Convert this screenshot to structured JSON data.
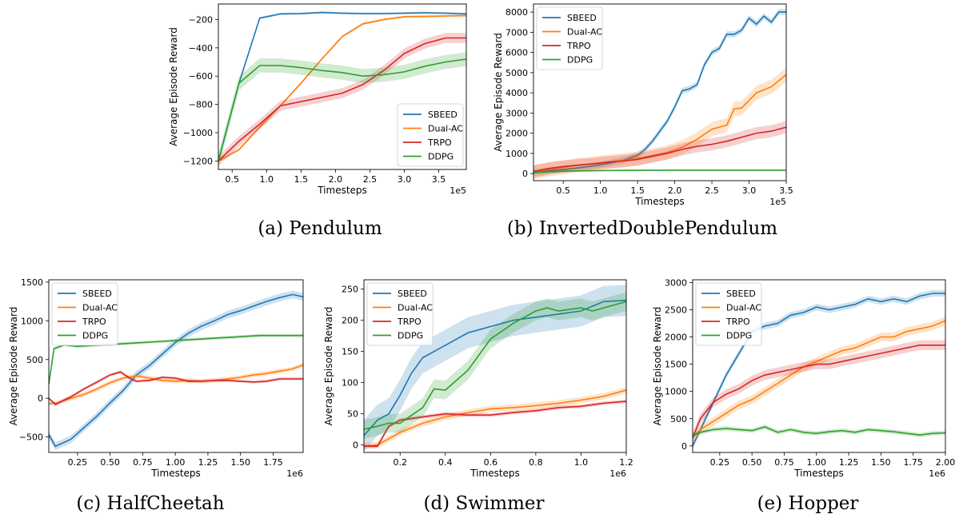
{
  "colors": {
    "SBEED": "#1f77b4",
    "Dual-AC": "#ff7f0e",
    "TRPO": "#d62728",
    "DDPG": "#2ca02c"
  },
  "chart_data": [
    {
      "type": "line",
      "caption": "(a) Pendulum",
      "xlabel": "Timesteps",
      "ylabel": "Average Episode Reward",
      "offset": "1e5",
      "xlim": [
        0.3,
        3.9
      ],
      "ylim": [
        -1260,
        -90
      ],
      "xticks": [
        0.5,
        1.0,
        1.5,
        2.0,
        2.5,
        3.0,
        3.5
      ],
      "xticklabels": [
        "0.5",
        "1.0",
        "1.5",
        "2.0",
        "2.5",
        "3.0",
        "3.5"
      ],
      "yticks": [
        -1200,
        -1000,
        -800,
        -600,
        -400,
        -200
      ],
      "yticklabels": [
        "−1200",
        "−1000",
        "−800",
        "−600",
        "−400",
        "−200"
      ],
      "legend": "lower-right",
      "series": [
        {
          "name": "SBEED",
          "band": 8,
          "x": [
            0.3,
            0.6,
            0.9,
            1.2,
            1.5,
            1.8,
            2.1,
            2.4,
            2.7,
            3.0,
            3.3,
            3.6,
            3.9
          ],
          "y": [
            -1200,
            -650,
            -190,
            -160,
            -158,
            -150,
            -155,
            -158,
            -158,
            -155,
            -152,
            -155,
            -160
          ]
        },
        {
          "name": "Dual-AC",
          "band": 10,
          "x": [
            0.3,
            0.6,
            0.9,
            1.2,
            1.5,
            1.8,
            2.1,
            2.4,
            2.7,
            3.0,
            3.3,
            3.6,
            3.9
          ],
          "y": [
            -1200,
            -1120,
            -960,
            -810,
            -650,
            -480,
            -320,
            -230,
            -200,
            -180,
            -178,
            -175,
            -172
          ]
        },
        {
          "name": "TRPO",
          "band": 35,
          "x": [
            0.3,
            0.6,
            0.9,
            1.2,
            1.5,
            1.8,
            2.1,
            2.4,
            2.7,
            3.0,
            3.3,
            3.6,
            3.9
          ],
          "y": [
            -1200,
            -1060,
            -940,
            -810,
            -780,
            -750,
            -720,
            -660,
            -560,
            -440,
            -370,
            -330,
            -330
          ]
        },
        {
          "name": "DDPG",
          "band": 50,
          "x": [
            0.3,
            0.6,
            0.9,
            1.2,
            1.5,
            1.8,
            2.1,
            2.4,
            2.7,
            3.0,
            3.3,
            3.6,
            3.9
          ],
          "y": [
            -1200,
            -650,
            -525,
            -525,
            -540,
            -560,
            -575,
            -600,
            -590,
            -570,
            -530,
            -500,
            -480
          ]
        }
      ]
    },
    {
      "type": "line",
      "caption": "(b) InvertedDoublePendulum",
      "xlabel": "Timesteps",
      "ylabel": "Average Episode Reward",
      "offset": "1e5",
      "xlim": [
        0.1,
        3.5
      ],
      "ylim": [
        -350,
        8400
      ],
      "xticks": [
        0.5,
        1.0,
        1.5,
        2.0,
        2.5,
        3.0,
        3.5
      ],
      "xticklabels": [
        "0.5",
        "1.0",
        "1.5",
        "2.0",
        "2.5",
        "3.0",
        "3.5"
      ],
      "yticks": [
        0,
        1000,
        2000,
        3000,
        4000,
        5000,
        6000,
        7000,
        8000
      ],
      "yticklabels": [
        "0",
        "1000",
        "2000",
        "3000",
        "4000",
        "5000",
        "6000",
        "7000",
        "8000"
      ],
      "legend": "upper-left",
      "series": [
        {
          "name": "SBEED",
          "band": 150,
          "x": [
            0.1,
            0.3,
            0.5,
            0.7,
            0.9,
            1.1,
            1.3,
            1.5,
            1.6,
            1.7,
            1.8,
            1.9,
            2.0,
            2.1,
            2.2,
            2.3,
            2.4,
            2.5,
            2.6,
            2.7,
            2.8,
            2.9,
            3.0,
            3.1,
            3.2,
            3.3,
            3.4,
            3.5
          ],
          "y": [
            50,
            150,
            200,
            280,
            380,
            500,
            650,
            900,
            1200,
            1600,
            2100,
            2600,
            3300,
            4100,
            4200,
            4400,
            5400,
            6000,
            6200,
            6900,
            6900,
            7100,
            7700,
            7400,
            7800,
            7500,
            8000,
            8000
          ]
        },
        {
          "name": "Dual-AC",
          "band": 350,
          "x": [
            0.1,
            0.3,
            0.5,
            0.7,
            0.9,
            1.1,
            1.3,
            1.5,
            1.7,
            1.9,
            2.1,
            2.3,
            2.5,
            2.7,
            2.8,
            2.9,
            3.1,
            3.3,
            3.5
          ],
          "y": [
            80,
            200,
            300,
            420,
            500,
            580,
            650,
            750,
            900,
            1050,
            1300,
            1700,
            2200,
            2400,
            3200,
            3250,
            4000,
            4300,
            4900
          ]
        },
        {
          "name": "TRPO",
          "band": 300,
          "x": [
            0.1,
            0.3,
            0.5,
            0.7,
            0.9,
            1.1,
            1.3,
            1.5,
            1.7,
            1.9,
            2.1,
            2.3,
            2.5,
            2.7,
            2.9,
            3.1,
            3.3,
            3.5
          ],
          "y": [
            100,
            250,
            350,
            420,
            480,
            560,
            620,
            700,
            850,
            1000,
            1200,
            1350,
            1450,
            1600,
            1800,
            2000,
            2100,
            2300
          ]
        },
        {
          "name": "DDPG",
          "band": 30,
          "x": [
            0.1,
            0.5,
            1.0,
            1.5,
            2.0,
            2.5,
            3.0,
            3.5
          ],
          "y": [
            50,
            120,
            150,
            160,
            170,
            170,
            170,
            170
          ]
        }
      ]
    },
    {
      "type": "line",
      "caption": "(c) HalfCheetah",
      "xlabel": "Timesteps",
      "ylabel": "Average Episode Reward",
      "offset": "1e6",
      "xlim": [
        0.03,
        1.98
      ],
      "ylim": [
        -700,
        1530
      ],
      "xticks": [
        0.25,
        0.5,
        0.75,
        1.0,
        1.25,
        1.5,
        1.75
      ],
      "xticklabels": [
        "0.25",
        "0.50",
        "0.75",
        "1.00",
        "1.25",
        "1.50",
        "1.75"
      ],
      "yticks": [
        -500,
        0,
        500,
        1000,
        1500
      ],
      "yticklabels": [
        "−500",
        "0",
        "500",
        "1000",
        "1500"
      ],
      "legend": "upper-left",
      "series": [
        {
          "name": "SBEED",
          "band": 50,
          "x": [
            0.03,
            0.08,
            0.2,
            0.3,
            0.4,
            0.5,
            0.6,
            0.7,
            0.8,
            0.9,
            1.0,
            1.1,
            1.2,
            1.3,
            1.4,
            1.5,
            1.6,
            1.7,
            1.8,
            1.9,
            1.98
          ],
          "y": [
            -470,
            -620,
            -530,
            -380,
            -230,
            -60,
            100,
            300,
            420,
            570,
            720,
            840,
            930,
            1000,
            1080,
            1130,
            1190,
            1250,
            1300,
            1340,
            1310
          ]
        },
        {
          "name": "Dual-AC",
          "band": 30,
          "x": [
            0.03,
            0.1,
            0.2,
            0.3,
            0.4,
            0.5,
            0.6,
            0.7,
            0.8,
            0.9,
            1.0,
            1.1,
            1.2,
            1.3,
            1.4,
            1.5,
            1.6,
            1.7,
            1.8,
            1.9,
            1.98
          ],
          "y": [
            -70,
            -60,
            0,
            50,
            120,
            200,
            260,
            290,
            260,
            230,
            220,
            230,
            220,
            230,
            250,
            270,
            300,
            320,
            350,
            380,
            430
          ]
        },
        {
          "name": "TRPO",
          "band": 20,
          "x": [
            0.03,
            0.08,
            0.2,
            0.3,
            0.4,
            0.5,
            0.58,
            0.65,
            0.7,
            0.8,
            0.9,
            1.0,
            1.1,
            1.2,
            1.3,
            1.4,
            1.5,
            1.6,
            1.7,
            1.8,
            1.98
          ],
          "y": [
            0,
            -80,
            20,
            120,
            210,
            300,
            340,
            260,
            220,
            230,
            270,
            260,
            220,
            220,
            230,
            230,
            220,
            210,
            220,
            250,
            250
          ]
        },
        {
          "name": "DDPG",
          "band": 20,
          "x": [
            0.03,
            0.07,
            0.15,
            0.25,
            0.35,
            0.45,
            0.55,
            0.65,
            0.75,
            0.85,
            0.95,
            1.05,
            1.15,
            1.25,
            1.35,
            1.45,
            1.55,
            1.65,
            1.75,
            1.85,
            1.98
          ],
          "y": [
            180,
            640,
            690,
            670,
            680,
            690,
            700,
            710,
            720,
            730,
            740,
            750,
            760,
            770,
            780,
            790,
            800,
            810,
            810,
            810,
            810
          ]
        }
      ]
    },
    {
      "type": "line",
      "caption": "(d) Swimmer",
      "xlabel": "Timesteps",
      "ylabel": "Average Episode Reward",
      "offset": "1e6",
      "xlim": [
        0.04,
        1.2
      ],
      "ylim": [
        -12,
        265
      ],
      "xticks": [
        0.2,
        0.4,
        0.6,
        0.8,
        1.0,
        1.2
      ],
      "xticklabels": [
        "0.2",
        "0.4",
        "0.6",
        "0.8",
        "1.0",
        "1.2"
      ],
      "yticks": [
        0,
        50,
        100,
        150,
        200,
        250
      ],
      "yticklabels": [
        "0",
        "50",
        "100",
        "150",
        "200",
        "250"
      ],
      "legend": "upper-left",
      "series": [
        {
          "name": "SBEED",
          "band": 25,
          "x": [
            0.04,
            0.1,
            0.15,
            0.2,
            0.25,
            0.3,
            0.35,
            0.4,
            0.5,
            0.6,
            0.7,
            0.8,
            0.9,
            1.0,
            1.1,
            1.2
          ],
          "y": [
            15,
            40,
            50,
            80,
            115,
            140,
            150,
            160,
            180,
            190,
            200,
            205,
            210,
            215,
            230,
            232
          ]
        },
        {
          "name": "Dual-AC",
          "band": 5,
          "x": [
            0.04,
            0.1,
            0.15,
            0.2,
            0.3,
            0.4,
            0.5,
            0.6,
            0.7,
            0.8,
            0.9,
            1.0,
            1.1,
            1.2
          ],
          "y": [
            -2,
            0,
            10,
            20,
            35,
            45,
            52,
            58,
            60,
            63,
            67,
            72,
            78,
            88
          ]
        },
        {
          "name": "TRPO",
          "band": 3,
          "x": [
            0.04,
            0.1,
            0.15,
            0.2,
            0.3,
            0.4,
            0.5,
            0.6,
            0.7,
            0.8,
            0.9,
            1.0,
            1.1,
            1.2
          ],
          "y": [
            -2,
            -2,
            30,
            40,
            45,
            50,
            48,
            48,
            52,
            55,
            60,
            62,
            67,
            70
          ]
        },
        {
          "name": "DDPG",
          "band": 15,
          "x": [
            0.04,
            0.1,
            0.15,
            0.2,
            0.3,
            0.35,
            0.4,
            0.5,
            0.6,
            0.7,
            0.8,
            0.85,
            0.9,
            1.0,
            1.05,
            1.1,
            1.2
          ],
          "y": [
            25,
            30,
            35,
            35,
            60,
            90,
            88,
            120,
            170,
            195,
            215,
            220,
            215,
            220,
            215,
            220,
            230
          ]
        }
      ]
    },
    {
      "type": "line",
      "caption": "(e) Hopper",
      "xlabel": "Timesteps",
      "ylabel": "Average Episode Reward",
      "offset": "1e6",
      "xlim": [
        0.04,
        2.0
      ],
      "ylim": [
        -120,
        3050
      ],
      "xticks": [
        0.25,
        0.5,
        0.75,
        1.0,
        1.25,
        1.5,
        1.75,
        2.0
      ],
      "xticklabels": [
        "0.25",
        "0.50",
        "0.75",
        "1.00",
        "1.25",
        "1.50",
        "1.75",
        "2.00"
      ],
      "yticks": [
        0,
        500,
        1000,
        1500,
        2000,
        2500,
        3000
      ],
      "yticklabels": [
        "0",
        "500",
        "1000",
        "1500",
        "2000",
        "2500",
        "3000"
      ],
      "legend": "upper-left",
      "series": [
        {
          "name": "SBEED",
          "band": 60,
          "x": [
            0.04,
            0.1,
            0.2,
            0.3,
            0.4,
            0.5,
            0.6,
            0.7,
            0.8,
            0.9,
            1.0,
            1.1,
            1.2,
            1.3,
            1.4,
            1.5,
            1.6,
            1.7,
            1.8,
            1.9,
            2.0
          ],
          "y": [
            0,
            300,
            800,
            1300,
            1700,
            2100,
            2200,
            2250,
            2400,
            2450,
            2550,
            2500,
            2550,
            2600,
            2700,
            2650,
            2700,
            2650,
            2750,
            2800,
            2800
          ]
        },
        {
          "name": "Dual-AC",
          "band": 80,
          "x": [
            0.04,
            0.1,
            0.2,
            0.3,
            0.4,
            0.5,
            0.6,
            0.7,
            0.8,
            0.9,
            1.0,
            1.1,
            1.2,
            1.3,
            1.4,
            1.5,
            1.6,
            1.7,
            1.8,
            1.9,
            2.0
          ],
          "y": [
            150,
            300,
            450,
            600,
            750,
            850,
            1000,
            1150,
            1300,
            1450,
            1550,
            1650,
            1750,
            1800,
            1900,
            2000,
            2000,
            2100,
            2150,
            2200,
            2300
          ]
        },
        {
          "name": "TRPO",
          "band": 90,
          "x": [
            0.04,
            0.1,
            0.2,
            0.3,
            0.4,
            0.5,
            0.6,
            0.7,
            0.8,
            0.9,
            1.0,
            1.1,
            1.2,
            1.3,
            1.4,
            1.5,
            1.6,
            1.7,
            1.8,
            1.9,
            2.0
          ],
          "y": [
            150,
            500,
            800,
            950,
            1050,
            1200,
            1300,
            1350,
            1400,
            1450,
            1500,
            1500,
            1550,
            1600,
            1650,
            1700,
            1750,
            1800,
            1850,
            1850,
            1850
          ]
        },
        {
          "name": "DDPG",
          "band": 40,
          "x": [
            0.04,
            0.1,
            0.2,
            0.3,
            0.4,
            0.5,
            0.6,
            0.7,
            0.8,
            0.9,
            1.0,
            1.1,
            1.2,
            1.3,
            1.4,
            1.5,
            1.6,
            1.7,
            1.8,
            1.9,
            2.0
          ],
          "y": [
            200,
            250,
            300,
            320,
            300,
            280,
            350,
            250,
            300,
            250,
            230,
            260,
            280,
            250,
            300,
            280,
            260,
            230,
            200,
            230,
            240
          ]
        }
      ]
    }
  ]
}
